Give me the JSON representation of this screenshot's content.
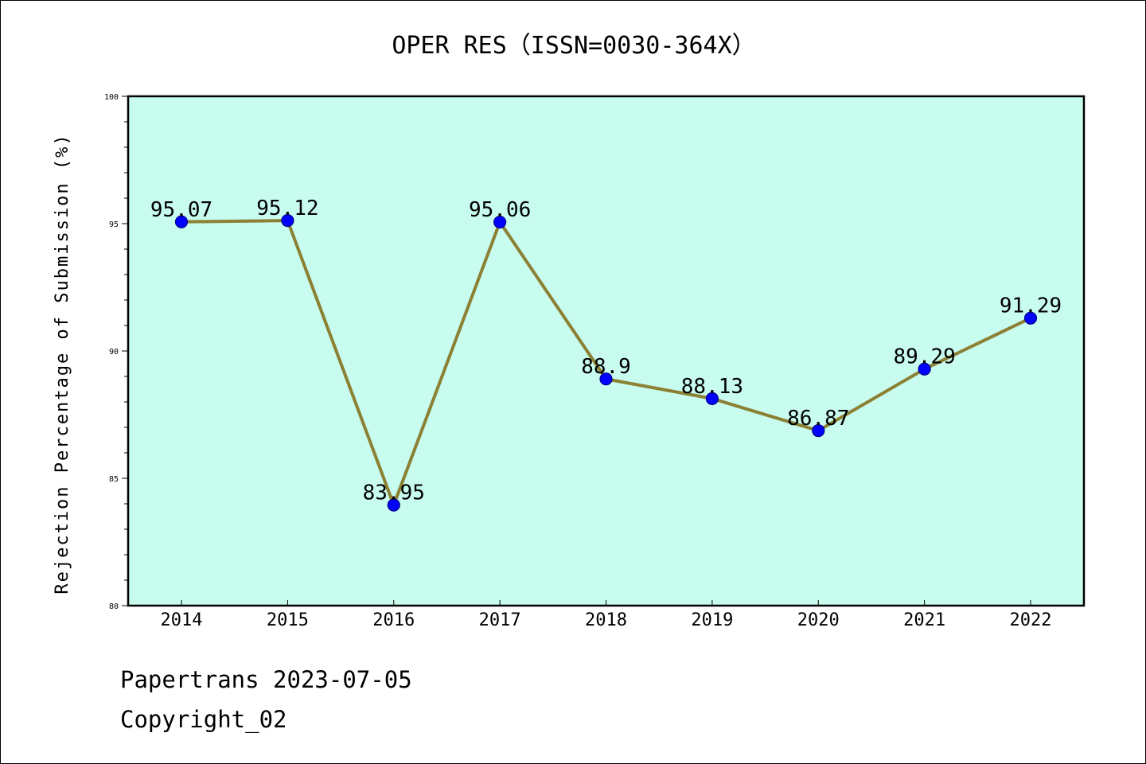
{
  "chart_data": {
    "type": "line",
    "title": "OPER RES（ISSN=0030-364X）",
    "xlabel": "",
    "ylabel": "Rejection Percentage of Submission (%)",
    "categories": [
      "2014",
      "2015",
      "2016",
      "2017",
      "2018",
      "2019",
      "2020",
      "2021",
      "2022"
    ],
    "values": [
      95.07,
      95.12,
      83.95,
      95.06,
      88.9,
      88.13,
      86.87,
      89.29,
      91.29
    ],
    "data_labels": [
      "95.07",
      "95.12",
      "83.95",
      "95.06",
      "88.9",
      "88.13",
      "86.87",
      "89.29",
      "91.29"
    ],
    "ylim": [
      80,
      100
    ],
    "y_ticks": [
      "80",
      "85",
      "90",
      "95",
      "100"
    ],
    "grid": false,
    "legend": "none",
    "colors": {
      "plot_background": "#c8fcee",
      "line": "#8b8034",
      "marker": "#0000ff",
      "marker_edge": "#00008b"
    }
  },
  "footer": {
    "date_line": "Papertrans 2023-07-05",
    "copyright_line": "Copyright_02"
  }
}
